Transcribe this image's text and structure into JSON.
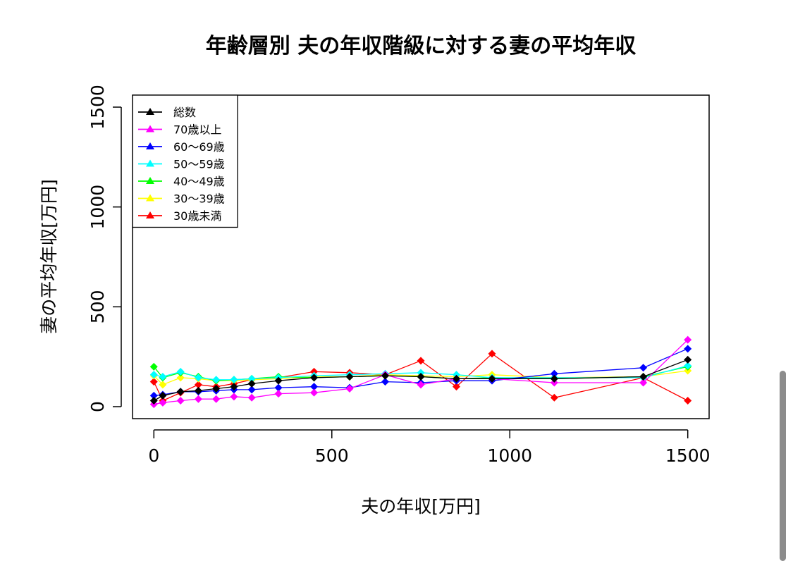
{
  "chart_data": {
    "type": "line",
    "title": "年齢層別 夫の年収階級に対する妻の平均年収",
    "xlabel": "夫の年収[万円]",
    "ylabel": "妻の平均年収[万円]",
    "xlim": [
      -60,
      1560
    ],
    "ylim": [
      -60,
      1560
    ],
    "x_ticks": [
      0,
      500,
      1000,
      1500
    ],
    "y_ticks": [
      0,
      500,
      1000,
      1500
    ],
    "legend_position": "top-left",
    "x": [
      0,
      25,
      75,
      125,
      175,
      225,
      275,
      350,
      450,
      550,
      650,
      750,
      850,
      950,
      1125,
      1375,
      1500
    ],
    "series": [
      {
        "name": "総数",
        "color": "#000000",
        "values": [
          30,
          55,
          75,
          80,
          90,
          100,
          115,
          130,
          145,
          150,
          155,
          150,
          140,
          140,
          140,
          150,
          235
        ]
      },
      {
        "name": "70歳以上",
        "color": "#ff00ff",
        "values": [
          12,
          20,
          30,
          38,
          38,
          50,
          45,
          65,
          70,
          90,
          160,
          110,
          140,
          140,
          120,
          120,
          335
        ]
      },
      {
        "name": "60〜69歳",
        "color": "#0000ff",
        "values": [
          55,
          60,
          75,
          75,
          80,
          85,
          85,
          95,
          100,
          95,
          125,
          120,
          130,
          130,
          165,
          195,
          290
        ]
      },
      {
        "name": "50〜59歳",
        "color": "#00ffff",
        "values": [
          160,
          150,
          175,
          145,
          135,
          135,
          140,
          145,
          155,
          160,
          165,
          170,
          160,
          145,
          145,
          145,
          205
        ]
      },
      {
        "name": "40〜49歳",
        "color": "#00ff00",
        "values": [
          200,
          145,
          170,
          150,
          130,
          135,
          140,
          150,
          145,
          150,
          155,
          150,
          140,
          145,
          140,
          150,
          200
        ]
      },
      {
        "name": "30〜39歳",
        "color": "#ffff00",
        "values": [
          155,
          110,
          145,
          140,
          130,
          130,
          135,
          140,
          150,
          150,
          160,
          155,
          150,
          160,
          145,
          150,
          180
        ]
      },
      {
        "name": "30歳未満",
        "color": "#ff0000",
        "values": [
          125,
          30,
          70,
          110,
          100,
          115,
          135,
          145,
          175,
          170,
          160,
          230,
          100,
          265,
          45,
          145,
          30
        ]
      }
    ]
  }
}
